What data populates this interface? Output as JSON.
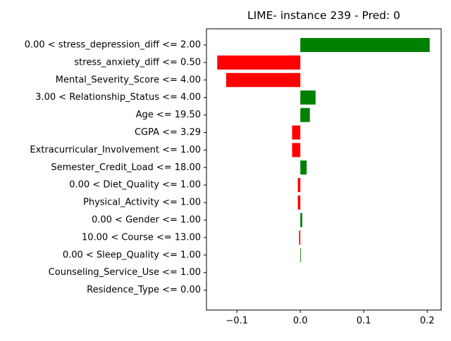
{
  "chart_data": {
    "type": "bar",
    "orientation": "horizontal",
    "title": "LIME- instance 239 - Pred: 0",
    "xlabel": "",
    "ylabel": "",
    "xlim": [
      -0.148,
      0.222
    ],
    "x_ticks": [
      {
        "value": -0.1,
        "label": "−0.1"
      },
      {
        "value": 0.0,
        "label": "0.0"
      },
      {
        "value": 0.1,
        "label": "0.1"
      },
      {
        "value": 0.2,
        "label": "0.2"
      }
    ],
    "grid": false,
    "legend": "none",
    "colors": {
      "positive": "#008000",
      "negative": "#ff0000"
    },
    "categories": [
      "0.00 < stress_depression_diff <= 2.00",
      "stress_anxiety_diff <= 0.50",
      "Mental_Severity_Score <= 4.00",
      "3.00 < Relationship_Status <= 4.00",
      "Age <= 19.50",
      "CGPA <= 3.29",
      "Extracurricular_Involvement <= 1.00",
      "Semester_Credit_Load <= 18.00",
      "0.00 < Diet_Quality <= 1.00",
      "Physical_Activity <= 1.00",
      "0.00 < Gender <= 1.00",
      "10.00 < Course <= 13.00",
      "0.00 < Sleep_Quality <= 1.00",
      "Counseling_Service_Use <= 1.00",
      "Residence_Type <= 0.00"
    ],
    "values": [
      0.204,
      -0.131,
      -0.117,
      0.024,
      0.015,
      -0.013,
      -0.013,
      0.01,
      -0.004,
      -0.004,
      0.003,
      -0.002,
      0.001,
      0.0,
      0.0
    ]
  }
}
